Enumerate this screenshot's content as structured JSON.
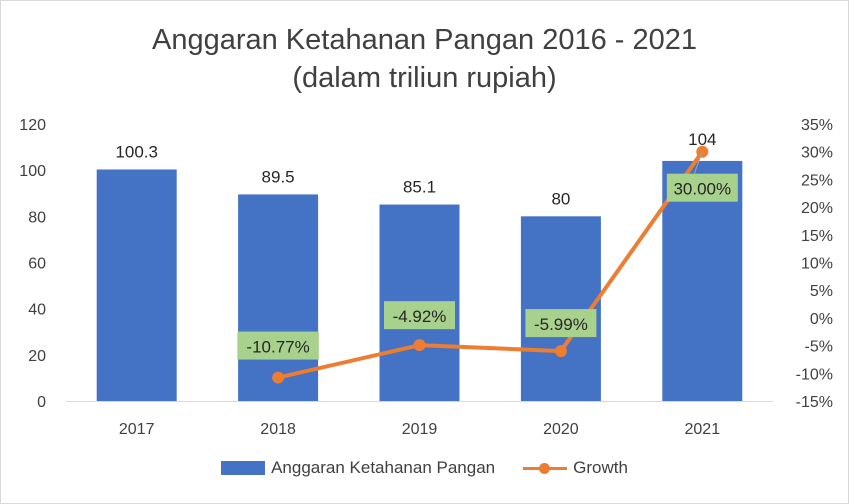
{
  "chart_data": {
    "type": "bar",
    "title": "Anggaran Ketahanan Pangan 2016 - 2021",
    "subtitle": "(dalam triliun rupiah)",
    "categories": [
      "2017",
      "2018",
      "2019",
      "2020",
      "2021"
    ],
    "series": [
      {
        "name": "Anggaran Ketahanan Pangan",
        "type": "bar",
        "axis": "left",
        "color": "#4472c4",
        "values": [
          100.3,
          89.5,
          85.1,
          80,
          104
        ],
        "labels": [
          "100.3",
          "89.5",
          "85.1",
          "80",
          "104"
        ]
      },
      {
        "name": "Growth",
        "type": "line",
        "axis": "right",
        "color": "#ed7d31",
        "values": [
          null,
          -10.77,
          -4.92,
          -5.99,
          30.0
        ],
        "labels": [
          "",
          "-10.77%",
          "-4.92%",
          "-5.99%",
          "30.00%"
        ],
        "label_background": "#a9d18e"
      }
    ],
    "y_left": {
      "ylim": [
        0,
        120
      ],
      "ticks": [
        "0",
        "20",
        "40",
        "60",
        "80",
        "100",
        "120"
      ]
    },
    "y_right": {
      "ylim": [
        -15,
        35
      ],
      "ticks": [
        "-15%",
        "-10%",
        "-5%",
        "0%",
        "5%",
        "10%",
        "15%",
        "20%",
        "25%",
        "30%",
        "35%"
      ]
    },
    "grid": false,
    "legend_position": "bottom"
  }
}
